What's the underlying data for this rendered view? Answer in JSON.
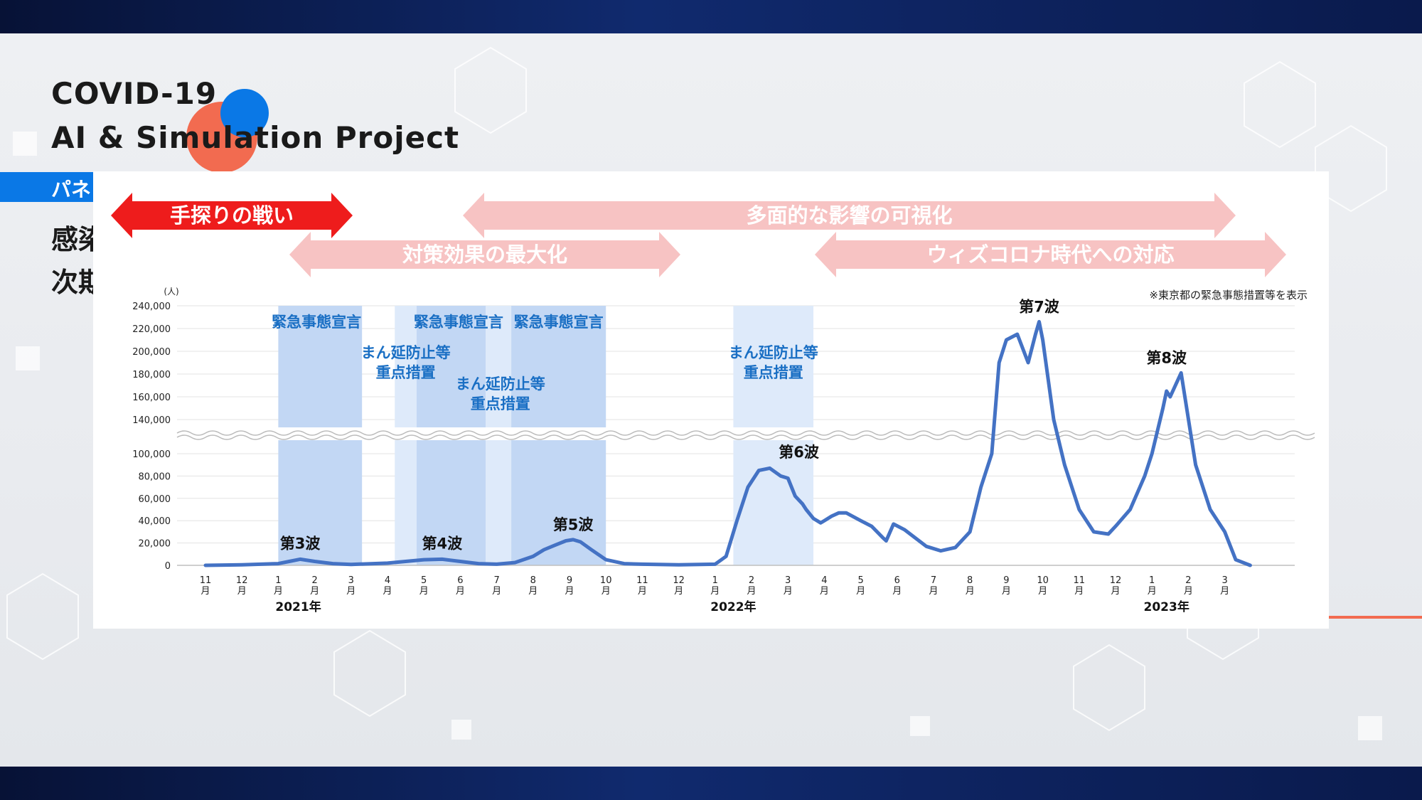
{
  "colors": {
    "line": "#4472c4",
    "emergency": "#c2d7f4",
    "semi": "#deeafa",
    "arrow_red": "#ee1c1c",
    "arrow_pink": "#f7c3c3",
    "label_blue": "#1a6fc4",
    "accent_red": "#f26b50",
    "accent_blue": "#0a78e6"
  },
  "header": {
    "title_line1": "COVID-19",
    "title_line2": "AI & Simulation Project",
    "tab_label": "パネ",
    "side_line1": "感染",
    "side_line2": "次期"
  },
  "phases": [
    {
      "label": "手探りの戦い",
      "style": "red"
    },
    {
      "label": "多面的な影響の可視化",
      "style": "pink"
    },
    {
      "label": "対策効果の最大化",
      "style": "pink"
    },
    {
      "label": "ウィズコロナ時代への対応",
      "style": "pink"
    }
  ],
  "chart_data": {
    "type": "line",
    "unit_label": "(人)",
    "note": "※東京都の緊急事態措置等を表示",
    "y_ticks_upper": [
      "240,000",
      "220,000",
      "200,000",
      "180,000",
      "160,000",
      "140,000"
    ],
    "y_ticks_lower": [
      "100,000",
      "80,000",
      "60,000",
      "40,000",
      "20,000",
      "0"
    ],
    "x_ticks": [
      "11月",
      "12月",
      "1月",
      "2月",
      "3月",
      "4月",
      "5月",
      "6月",
      "7月",
      "8月",
      "9月",
      "10月",
      "11月",
      "12月",
      "1月",
      "2月",
      "3月",
      "4月",
      "5月",
      "6月",
      "7月",
      "8月",
      "9月",
      "10月",
      "11月",
      "12月",
      "1月",
      "2月",
      "3月"
    ],
    "years": [
      "2021年",
      "2022年",
      "2023年"
    ],
    "measures": [
      {
        "type": "emergency",
        "label": "緊急事態宣言",
        "start": 2.0,
        "end": 4.3
      },
      {
        "type": "semi",
        "label": "まん延防止等\n重点措置",
        "start": 5.2,
        "end": 5.8
      },
      {
        "type": "emergency",
        "label": "緊急事態宣言",
        "start": 5.8,
        "end": 7.7
      },
      {
        "type": "semi",
        "label": "まん延防止等\n重点措置",
        "start": 7.7,
        "end": 8.4
      },
      {
        "type": "emergency",
        "label": "緊急事態宣言",
        "start": 8.4,
        "end": 11.0
      },
      {
        "type": "semi",
        "label": "まん延防止等\n重点措置",
        "start": 14.5,
        "end": 16.7
      }
    ],
    "waves": [
      {
        "label": "第3波",
        "x": 2.6,
        "y": 6000
      },
      {
        "label": "第4波",
        "x": 6.5,
        "y": 6000
      },
      {
        "label": "第5波",
        "x": 10.1,
        "y": 23000
      },
      {
        "label": "第6波",
        "x": 16.3,
        "y": 88000
      },
      {
        "label": "第7波",
        "x": 22.9,
        "y": 226000
      },
      {
        "label": "第8波",
        "x": 26.4,
        "y": 181000
      }
    ],
    "series": [
      {
        "x": [
          0,
          1,
          2,
          2.3,
          2.6,
          3.0,
          3.5,
          4.0,
          5,
          5.5,
          6.0,
          6.5,
          7.0,
          7.5,
          8,
          8.5,
          9.0,
          9.3,
          9.6,
          9.9,
          10.1,
          10.3,
          10.6,
          11.0,
          11.5,
          12,
          13,
          14,
          14.3,
          14.6,
          14.9,
          15.2,
          15.5,
          15.8,
          16.0,
          16.2,
          16.4,
          16.5,
          16.7,
          16.9,
          17.0,
          17.2,
          17.4,
          17.6,
          18.0,
          18.3,
          18.6,
          18.7,
          18.9,
          19.2,
          19.4,
          19.8,
          20.2,
          20.6,
          21.0,
          21.3,
          21.6,
          21.8,
          22.0,
          22.3,
          22.6,
          22.8,
          22.9,
          23.0,
          23.3,
          23.6,
          24.0,
          24.4,
          24.8,
          25.0,
          25.4,
          25.8,
          26.0,
          26.3,
          26.4,
          26.5,
          26.8,
          27.2,
          27.6,
          28.0,
          28.3,
          28.7
        ],
        "y": [
          0,
          500,
          1500,
          3500,
          5500,
          3500,
          1500,
          800,
          2000,
          3500,
          5000,
          5500,
          3500,
          1500,
          1000,
          2500,
          8000,
          14000,
          18000,
          22000,
          23000,
          21000,
          14000,
          5000,
          1500,
          1000,
          500,
          1000,
          8000,
          40000,
          70000,
          85000,
          87000,
          80000,
          78000,
          62000,
          55000,
          50000,
          42000,
          38000,
          40000,
          44000,
          47000,
          47000,
          40000,
          35000,
          25000,
          22000,
          37000,
          32000,
          27000,
          17000,
          13000,
          16000,
          30000,
          70000,
          100000,
          190000,
          210000,
          215000,
          190000,
          215000,
          226000,
          210000,
          140000,
          90000,
          50000,
          30000,
          28000,
          35000,
          50000,
          80000,
          100000,
          150000,
          165000,
          160000,
          181000,
          90000,
          50000,
          30000,
          5000,
          0
        ]
      }
    ]
  }
}
